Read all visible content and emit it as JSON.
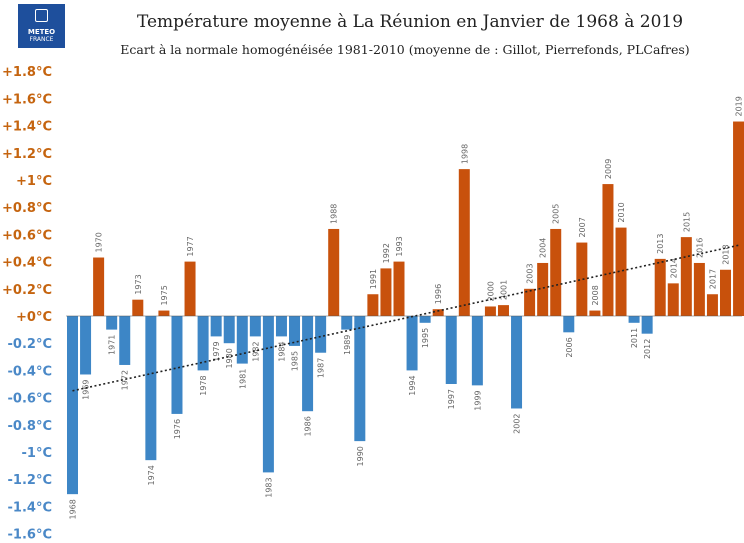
{
  "logo": {
    "line1": "METEO",
    "line2": "FRANCE"
  },
  "title": "Température moyenne à La Réunion en Janvier de 1968 à 2019",
  "subtitle": "Ecart à la normale homogénéisée 1981-2010 (moyenne de : Gillot, Pierrefonds, PLCafres)",
  "chart_data": {
    "type": "bar",
    "title": "Température moyenne à La Réunion en Janvier de 1968 à 2019",
    "subtitle": "Ecart à la normale homogénéisée 1981-2010 (moyenne de : Gillot, Pierrefonds, PLCafres)",
    "xlabel": "",
    "ylabel": "",
    "ylim": [
      -1.6,
      1.8
    ],
    "grid": false,
    "yticks": [
      "+1.8°C",
      "+1.6°C",
      "+1.4°C",
      "+1.2°C",
      "+1°C",
      "+0.8°C",
      "+0.6°C",
      "+0.4°C",
      "+0.2°C",
      "+0°C",
      "-0.2°C",
      "-0.4°C",
      "-0.6°C",
      "-0.8°C",
      "-1°C",
      "-1.2°C",
      "-1.4°C",
      "-1.6°C"
    ],
    "ytick_values": [
      1.8,
      1.6,
      1.4,
      1.2,
      1.0,
      0.8,
      0.6,
      0.4,
      0.2,
      0.0,
      -0.2,
      -0.4,
      -0.6,
      -0.8,
      -1.0,
      -1.2,
      -1.4,
      -1.6
    ],
    "categories": [
      "1968",
      "1969",
      "1970",
      "1971",
      "1972",
      "1973",
      "1974",
      "1975",
      "1976",
      "1977",
      "1978",
      "1979",
      "1980",
      "1981",
      "1982",
      "1983",
      "1984",
      "1985",
      "1986",
      "1987",
      "1988",
      "1989",
      "1990",
      "1991",
      "1992",
      "1993",
      "1994",
      "1995",
      "1996",
      "1997",
      "1998",
      "1999",
      "2000",
      "2001",
      "2002",
      "2003",
      "2004",
      "2005",
      "2006",
      "2007",
      "2008",
      "2009",
      "2010",
      "2011",
      "2012",
      "2013",
      "2014",
      "2015",
      "2016",
      "2017",
      "2018",
      "2019"
    ],
    "values": [
      -1.31,
      -0.43,
      0.43,
      -0.1,
      -0.36,
      0.12,
      -1.06,
      0.04,
      -0.72,
      0.4,
      -0.4,
      -0.15,
      -0.2,
      -0.35,
      -0.15,
      -1.15,
      -0.15,
      -0.22,
      -0.7,
      -0.27,
      0.64,
      -0.1,
      -0.92,
      0.16,
      0.35,
      0.4,
      -0.4,
      -0.05,
      0.05,
      -0.5,
      1.08,
      -0.51,
      0.07,
      0.08,
      -0.68,
      0.2,
      0.39,
      0.64,
      -0.12,
      0.54,
      0.04,
      0.97,
      0.65,
      -0.05,
      -0.13,
      0.42,
      0.24,
      0.58,
      0.39,
      0.16,
      0.34,
      1.43
    ],
    "trend": {
      "start": -0.55,
      "end": 0.52
    },
    "colors": {
      "positive": "#c8510c",
      "negative": "#3d86c6",
      "positive_text": "#c5640f",
      "negative_text": "#4a88c7",
      "trend": "#222222"
    }
  }
}
